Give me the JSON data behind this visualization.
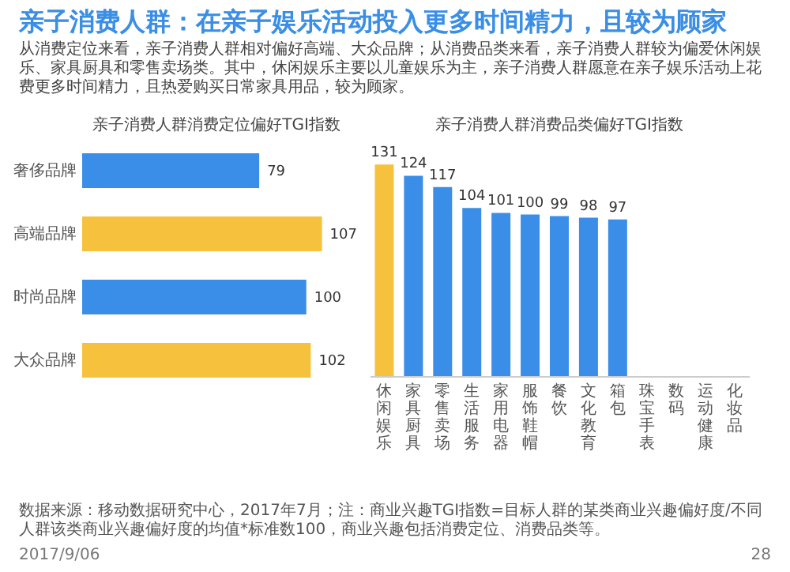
{
  "chart_data": [
    {
      "type": "other",
      "title": "亲子消费人群：在亲子娱乐活动投入更多时间精力，且较为顾家",
      "subtitle": "从消费定位来看，亲子消费人群相对偏好高端、大众品牌；从消费品类来看，亲子消费人群较为偏爱休闲娱乐、家具厨具和零售卖场类。其中，休闲娱乐主要以儿童娱乐为主，亲子消费人群愿意在亲子娱乐活动上花费更多时间精力，且热爱购买日常家具用品，较为顾家。",
      "annotations": [
        "数据来源：移动数据研究中心，2017年7月；注：商业兴趣TGI指数=目标人群的某类商业兴趣偏好度/不同人群该类商业兴趣偏好度的均值*标准数100，商业兴趣包括消费定位、消费品类等。",
        "2017/9/06",
        "28"
      ]
    },
    {
      "type": "bar",
      "orientation": "horizontal",
      "title": "亲子消费人群消费定位偏好TGI指数",
      "categories": [
        "奢侈品牌",
        "高端品牌",
        "时尚品牌",
        "大众品牌"
      ],
      "values": [
        79,
        107,
        100,
        102
      ],
      "colors": [
        "#3b8ee8",
        "#f6c23e",
        "#3b8ee8",
        "#f6c23e"
      ],
      "data_labels": true,
      "tick_labels": "y"
    },
    {
      "type": "bar",
      "title": "亲子消费人群消费品类偏好TGI指数",
      "categories": [
        "休闲娱乐",
        "家具厨具",
        "零售卖场",
        "生活服务",
        "家用电器",
        "服饰鞋帽",
        "餐饮",
        "文化教育",
        "箱包",
        "珠宝手表",
        "数码",
        "运动健康",
        "化妆品"
      ],
      "values": [
        131,
        124,
        117,
        104,
        101,
        100,
        99,
        98,
        97,
        null,
        null,
        null,
        null
      ],
      "colors": [
        "#f6c23e",
        "#3b8ee8",
        "#3b8ee8",
        "#3b8ee8",
        "#3b8ee8",
        "#3b8ee8",
        "#3b8ee8",
        "#3b8ee8",
        "#3b8ee8",
        null,
        null,
        null,
        null
      ],
      "data_labels": true,
      "tick_labels": "x"
    }
  ]
}
